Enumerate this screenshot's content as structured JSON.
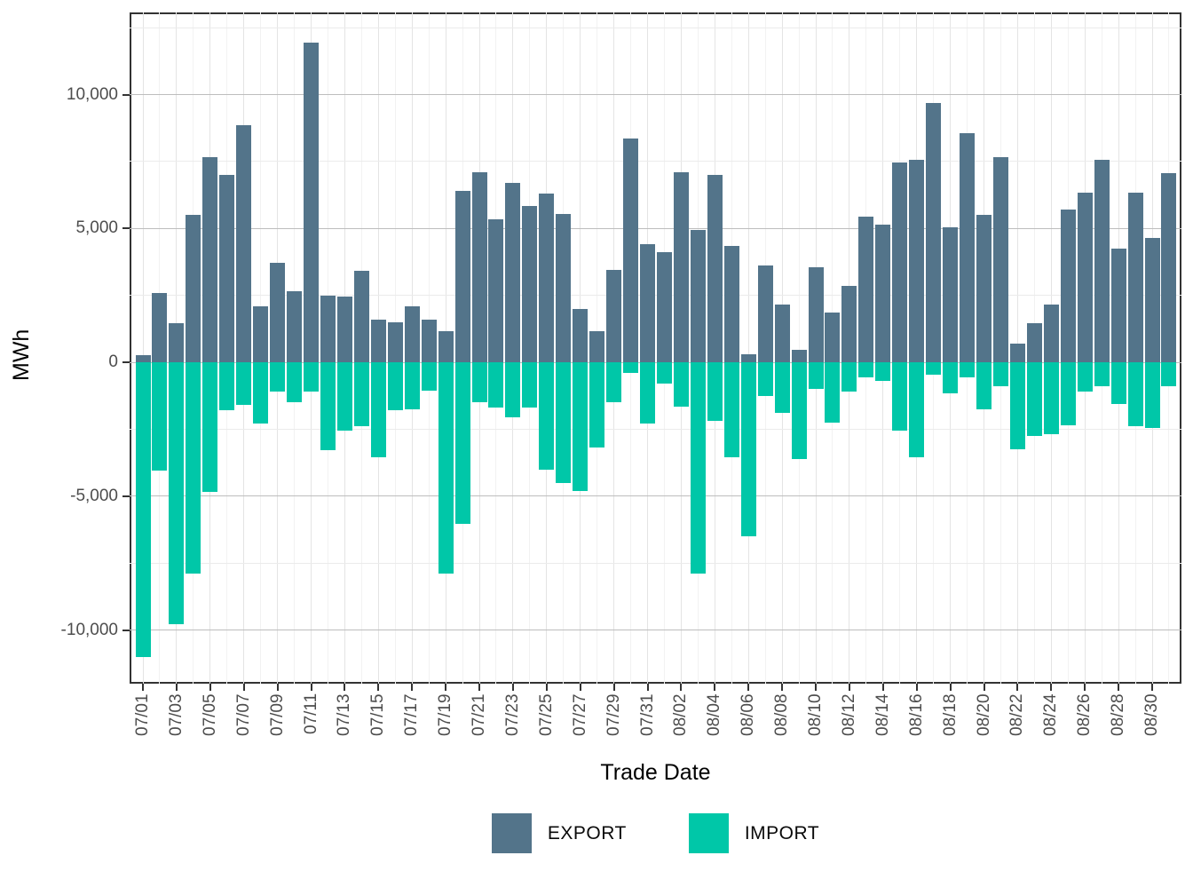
{
  "chart_data": {
    "type": "bar",
    "title": "",
    "xlabel": "Trade Date",
    "ylabel": "MWh",
    "ylim": [
      -12010,
      13070
    ],
    "grid": true,
    "legend_position": "bottom",
    "yticks": [
      10000,
      5000,
      0,
      -5000,
      -10000
    ],
    "ytick_labels": [
      "10,000",
      "5,000",
      "0",
      "-5,000",
      "-10,000"
    ],
    "yticks_minor": [
      12500,
      7500,
      2500,
      -2500,
      -7500
    ],
    "xtick_labels": [
      "07/01",
      "07/03",
      "07/05",
      "07/07",
      "07/09",
      "07/11",
      "07/13",
      "07/15",
      "07/17",
      "07/19",
      "07/21",
      "07/23",
      "07/25",
      "07/27",
      "07/29",
      "07/31",
      "08/02",
      "08/04",
      "08/06",
      "08/08",
      "08/10",
      "08/12",
      "08/14",
      "08/16",
      "08/18",
      "08/20",
      "08/22",
      "08/24",
      "08/26",
      "08/28",
      "08/30"
    ],
    "categories": [
      "07/01",
      "07/02",
      "07/03",
      "07/04",
      "07/05",
      "07/06",
      "07/07",
      "07/08",
      "07/09",
      "07/10",
      "07/11",
      "07/12",
      "07/13",
      "07/14",
      "07/15",
      "07/16",
      "07/17",
      "07/18",
      "07/19",
      "07/20",
      "07/21",
      "07/22",
      "07/23",
      "07/24",
      "07/25",
      "07/26",
      "07/27",
      "07/28",
      "07/29",
      "07/30",
      "07/31",
      "08/01",
      "08/02",
      "08/03",
      "08/04",
      "08/05",
      "08/06",
      "08/07",
      "08/08",
      "08/09",
      "08/10",
      "08/11",
      "08/12",
      "08/13",
      "08/14",
      "08/15",
      "08/16",
      "08/17",
      "08/18",
      "08/19",
      "08/20",
      "08/21",
      "08/22",
      "08/23",
      "08/24",
      "08/25",
      "08/26",
      "08/27",
      "08/28",
      "08/29",
      "08/30",
      "08/31"
    ],
    "series": [
      {
        "name": "EXPORT",
        "color": "#53748A",
        "values": [
          250,
          2600,
          1450,
          5500,
          7650,
          7000,
          8850,
          2100,
          3700,
          2650,
          11950,
          2500,
          2450,
          3400,
          1600,
          1500,
          2100,
          1600,
          1150,
          6400,
          7100,
          5350,
          6700,
          5850,
          6300,
          5550,
          2000,
          1150,
          3450,
          8350,
          4400,
          4100,
          7100,
          4950,
          7000,
          4350,
          300,
          3600,
          2150,
          450,
          3550,
          1850,
          2850,
          5450,
          5150,
          7450,
          7550,
          9700,
          5050,
          8550,
          5500,
          7650,
          700,
          1450,
          2150,
          5700,
          6350,
          7550,
          4250,
          6350,
          4650,
          7050
        ]
      },
      {
        "name": "IMPORT",
        "color": "#00C7A8",
        "values": [
          -11000,
          -4050,
          -9800,
          -7900,
          -4850,
          -1800,
          -1600,
          -2300,
          -1100,
          -1500,
          -1100,
          -3300,
          -2550,
          -2400,
          -3550,
          -1800,
          -1750,
          -1050,
          -7900,
          -6050,
          -1500,
          -1700,
          -2050,
          -1700,
          -4000,
          -4500,
          -4800,
          -3200,
          -1500,
          -400,
          -2300,
          -800,
          -1650,
          -7900,
          -2200,
          -3550,
          -6500,
          -1250,
          -1900,
          -3600,
          -1000,
          -2250,
          -1100,
          -550,
          -700,
          -2550,
          -3550,
          -450,
          -1150,
          -550,
          -1750,
          -900,
          -3250,
          -2750,
          -2700,
          -2350,
          -1100,
          -900,
          -1550,
          -2400,
          -2450,
          -900
        ]
      }
    ],
    "colors": {
      "export": "#53748A",
      "import": "#00C7A8",
      "axis_text": "#4D4D4D",
      "axis_title": "#000000",
      "panel_border": "#333333",
      "grid_major_h": "#BDBDBD",
      "grid_minor_h": "#EBEBEB",
      "grid_major_v": "#E4E4E4",
      "grid_minor_v": "#F2F2F2"
    }
  },
  "axes": {
    "x_title": "Trade Date",
    "y_title": "MWh"
  },
  "legend": {
    "export_label": "EXPORT",
    "import_label": "IMPORT"
  }
}
